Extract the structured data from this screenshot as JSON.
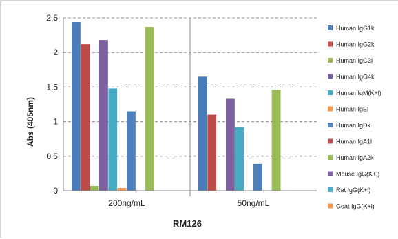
{
  "chart_data": {
    "type": "bar",
    "categories": [
      "200ng/mL",
      "50ng/mL"
    ],
    "xlabel": "RM126",
    "ylabel": "Abs (405nm)",
    "ylim": [
      0,
      2.5
    ],
    "yticks": [
      "0",
      "0.5",
      "1",
      "1.5",
      "2",
      "2.5"
    ],
    "grid": true,
    "legend_position": "right",
    "series": [
      {
        "name": "Human IgG1k",
        "color": "#4a7ebb",
        "values": [
          2.44,
          1.65
        ]
      },
      {
        "name": "Human IgG2k",
        "color": "#be4b48",
        "values": [
          2.12,
          1.1
        ]
      },
      {
        "name": "Human IgG3l",
        "color": "#98b954",
        "values": [
          0.07,
          0
        ]
      },
      {
        "name": "Human IgG4k",
        "color": "#7d60a0",
        "values": [
          2.18,
          1.33
        ]
      },
      {
        "name": "Human IgM(K+l)",
        "color": "#46aac5",
        "values": [
          1.48,
          0.92
        ]
      },
      {
        "name": "Human IgEl",
        "color": "#f79646",
        "values": [
          0.04,
          0
        ]
      },
      {
        "name": "Human IgDk",
        "color": "#4f81bd",
        "values": [
          1.15,
          0.39
        ]
      },
      {
        "name": "Human IgA1l",
        "color": "#c0504d",
        "values": [
          0,
          0
        ]
      },
      {
        "name": "Human IgA2k",
        "color": "#9bbb59",
        "values": [
          2.37,
          1.46
        ]
      },
      {
        "name": "Mouse IgG(K+l)",
        "color": "#8064a2",
        "values": [
          0,
          0
        ]
      },
      {
        "name": "Rat IgG(K+l)",
        "color": "#4bacc6",
        "values": [
          0,
          0
        ]
      },
      {
        "name": "Goat IgG(K+l)",
        "color": "#f79646",
        "values": [
          0,
          0
        ]
      }
    ]
  }
}
